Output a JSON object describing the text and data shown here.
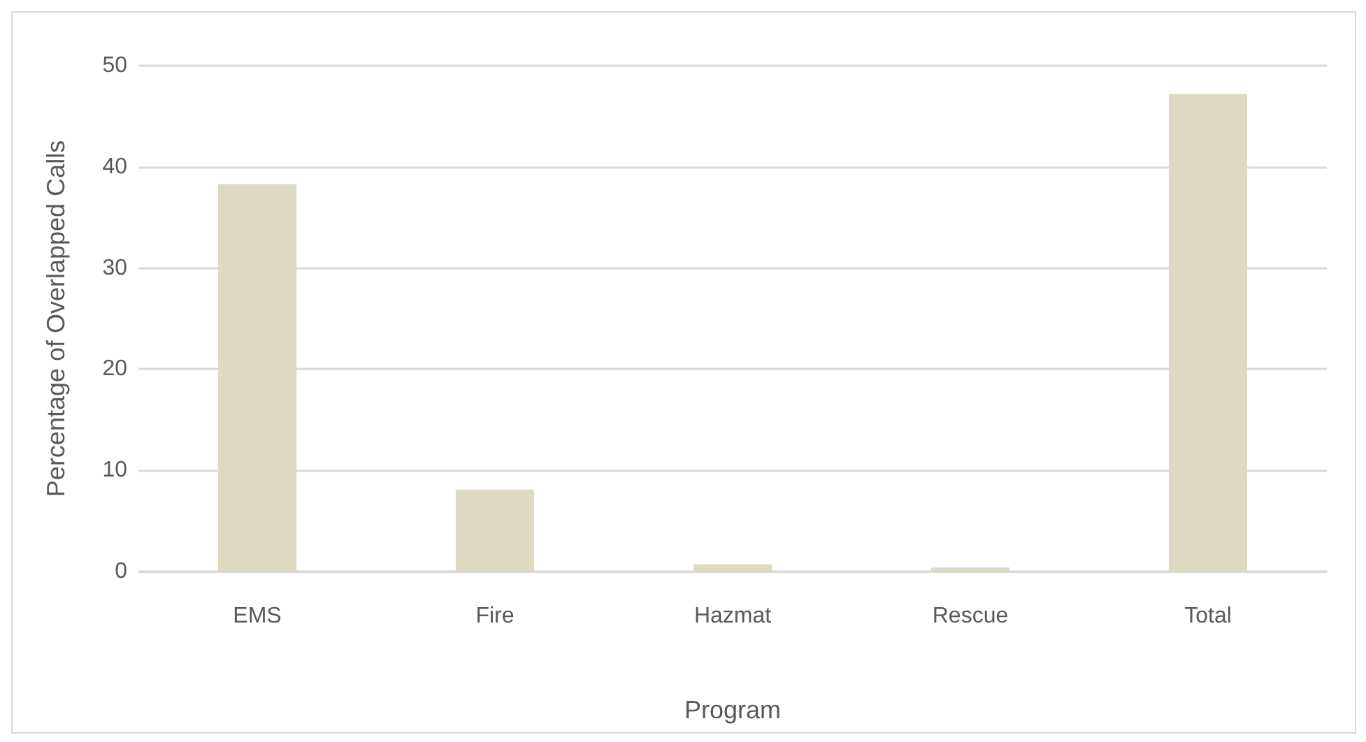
{
  "chart_data": {
    "type": "bar",
    "xlabel": "Program",
    "ylabel": "Percentage of Overlapped Calls",
    "categories": [
      "EMS",
      "Fire",
      "Hazmat",
      "Rescue",
      "Total"
    ],
    "values": [
      38.3,
      8.1,
      0.7,
      0.4,
      47.2
    ],
    "color": "#ddd9c3",
    "ylim": [
      0,
      50
    ],
    "yticks": [
      0,
      10,
      20,
      30,
      40,
      50
    ],
    "grid": "y"
  }
}
